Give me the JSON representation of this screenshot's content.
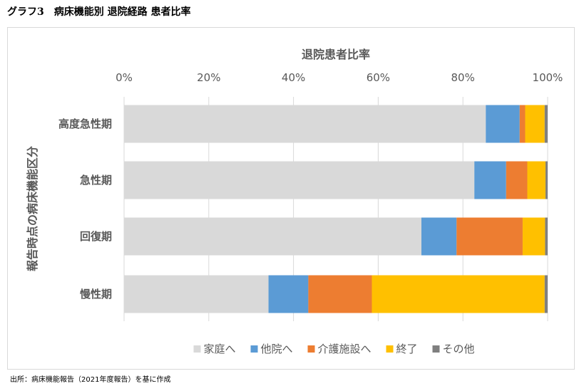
{
  "figure_title": "グラフ3　病床機能別 退院経路 患者比率",
  "source_note": "出所：病床機能報告（2021年度報告）を基に作成",
  "chart_data": {
    "type": "bar",
    "orientation": "horizontal",
    "stacked": true,
    "title": "",
    "xlabel": "退院患者比率",
    "ylabel": "報告時点の病床機能区分",
    "x_axis_position": "top",
    "xlim": [
      0,
      100
    ],
    "x_ticks": [
      "0%",
      "20%",
      "40%",
      "60%",
      "80%",
      "100%"
    ],
    "grid": true,
    "legend_position": "bottom",
    "categories": [
      "高度急性期",
      "急性期",
      "回復期",
      "慢性期"
    ],
    "series": [
      {
        "name": "家庭へ",
        "color": "#d9d9d9",
        "values": [
          85.4,
          82.7,
          70.2,
          34.1
        ]
      },
      {
        "name": "他院へ",
        "color": "#5b9bd5",
        "values": [
          8.0,
          7.5,
          8.3,
          9.4
        ]
      },
      {
        "name": "介護施設へ",
        "color": "#ed7d31",
        "values": [
          1.3,
          5.0,
          15.6,
          15.0
        ]
      },
      {
        "name": "終了",
        "color": "#ffc000",
        "values": [
          4.6,
          4.3,
          5.3,
          40.8
        ]
      },
      {
        "name": "その他",
        "color": "#7f7f7f",
        "values": [
          0.7,
          0.5,
          0.6,
          0.7
        ]
      }
    ]
  }
}
